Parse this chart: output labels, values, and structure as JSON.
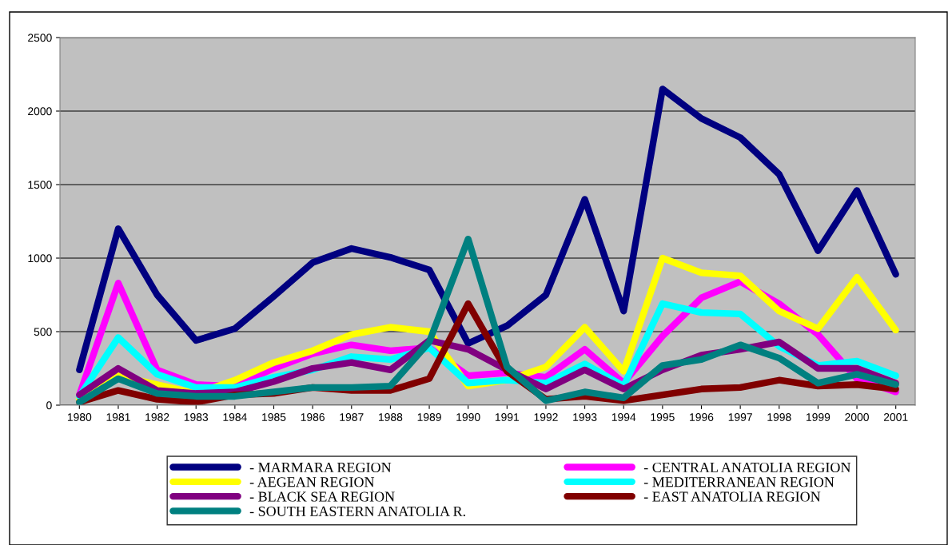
{
  "chart_data": {
    "type": "line",
    "categories": [
      "1980",
      "1981",
      "1982",
      "1983",
      "1984",
      "1985",
      "1986",
      "1987",
      "1988",
      "1989",
      "1990",
      "1991",
      "1992",
      "1993",
      "1994",
      "1995",
      "1996",
      "1997",
      "1998",
      "1999",
      "2000",
      "2001"
    ],
    "ylim": [
      0,
      2500
    ],
    "yticks": [
      0,
      500,
      1000,
      1500,
      2000,
      2500
    ],
    "grid": "y",
    "legend": "bottom",
    "marker": "none",
    "line_style": "solid",
    "series": [
      {
        "name": "- MARMARA REGION",
        "color": "#000080",
        "values": [
          240,
          1200,
          750,
          440,
          520,
          740,
          970,
          1065,
          1005,
          920,
          420,
          540,
          750,
          1400,
          640,
          2150,
          1950,
          1820,
          1570,
          1050,
          1460,
          890
        ]
      },
      {
        "name": "- CENTRAL ANATOLIA REGION",
        "color": "#ff00ff",
        "values": [
          70,
          830,
          240,
          140,
          130,
          250,
          350,
          410,
          370,
          390,
          200,
          220,
          190,
          380,
          150,
          470,
          730,
          840,
          690,
          480,
          180,
          90
        ]
      },
      {
        "name": "- AEGEAN REGION",
        "color": "#ffff00",
        "values": [
          40,
          200,
          140,
          80,
          170,
          290,
          370,
          480,
          530,
          500,
          130,
          170,
          260,
          530,
          230,
          1000,
          900,
          880,
          640,
          520,
          870,
          510
        ]
      },
      {
        "name": "- MEDITERRANEAN REGION",
        "color": "#00ffff",
        "values": [
          60,
          460,
          210,
          120,
          120,
          190,
          240,
          330,
          310,
          390,
          150,
          170,
          150,
          280,
          130,
          690,
          630,
          620,
          400,
          270,
          300,
          200
        ]
      },
      {
        "name": "- BLACK SEA REGION",
        "color": "#800080",
        "values": [
          70,
          250,
          100,
          80,
          90,
          160,
          250,
          290,
          240,
          440,
          380,
          240,
          110,
          240,
          110,
          240,
          340,
          380,
          430,
          250,
          250,
          150
        ]
      },
      {
        "name": "- EAST ANATOLIA REGION",
        "color": "#800000",
        "values": [
          20,
          100,
          40,
          20,
          70,
          80,
          120,
          100,
          100,
          180,
          690,
          230,
          40,
          60,
          30,
          70,
          110,
          120,
          170,
          130,
          140,
          110
        ]
      },
      {
        "name": "- SOUTH EASTERN ANATOLIA R.",
        "color": "#008080",
        "values": [
          20,
          180,
          80,
          60,
          60,
          90,
          120,
          120,
          130,
          430,
          1130,
          260,
          30,
          90,
          50,
          270,
          310,
          410,
          320,
          150,
          210,
          140
        ]
      }
    ]
  }
}
